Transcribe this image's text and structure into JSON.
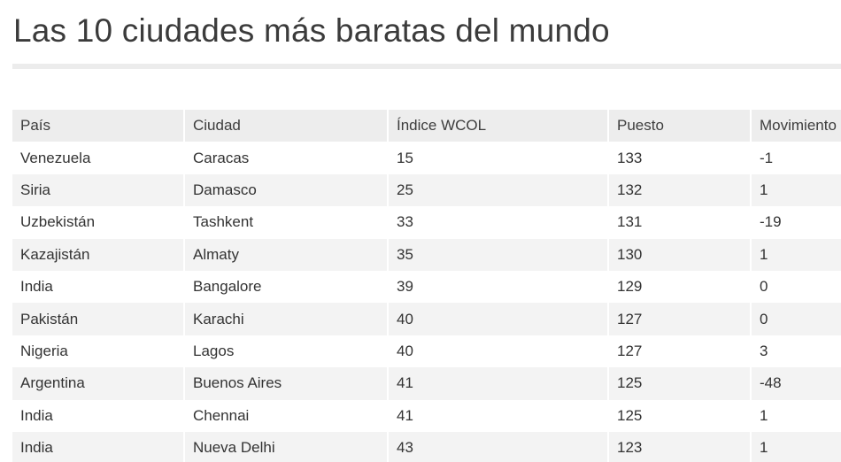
{
  "title": "Las 10 ciudades más baratas del mundo",
  "table": {
    "headers": [
      "País",
      "Ciudad",
      "Índice WCOL",
      "Puesto",
      "Movimiento"
    ],
    "rows": [
      [
        "Venezuela",
        "Caracas",
        "15",
        "133",
        "-1"
      ],
      [
        "Siria",
        "Damasco",
        "25",
        "132",
        "1"
      ],
      [
        "Uzbekistán",
        "Tashkent",
        "33",
        "131",
        "-19"
      ],
      [
        "Kazajistán",
        "Almaty",
        "35",
        "130",
        "1"
      ],
      [
        "India",
        "Bangalore",
        "39",
        "129",
        "0"
      ],
      [
        "Pakistán",
        "Karachi",
        "40",
        "127",
        "0"
      ],
      [
        "Nigeria",
        "Lagos",
        "40",
        "127",
        "3"
      ],
      [
        "Argentina",
        "Buenos Aires",
        "41",
        "125",
        "-48"
      ],
      [
        "India",
        "Chennai",
        "41",
        "125",
        "1"
      ],
      [
        "India",
        "Nueva Delhi",
        "43",
        "123",
        "1"
      ]
    ]
  }
}
